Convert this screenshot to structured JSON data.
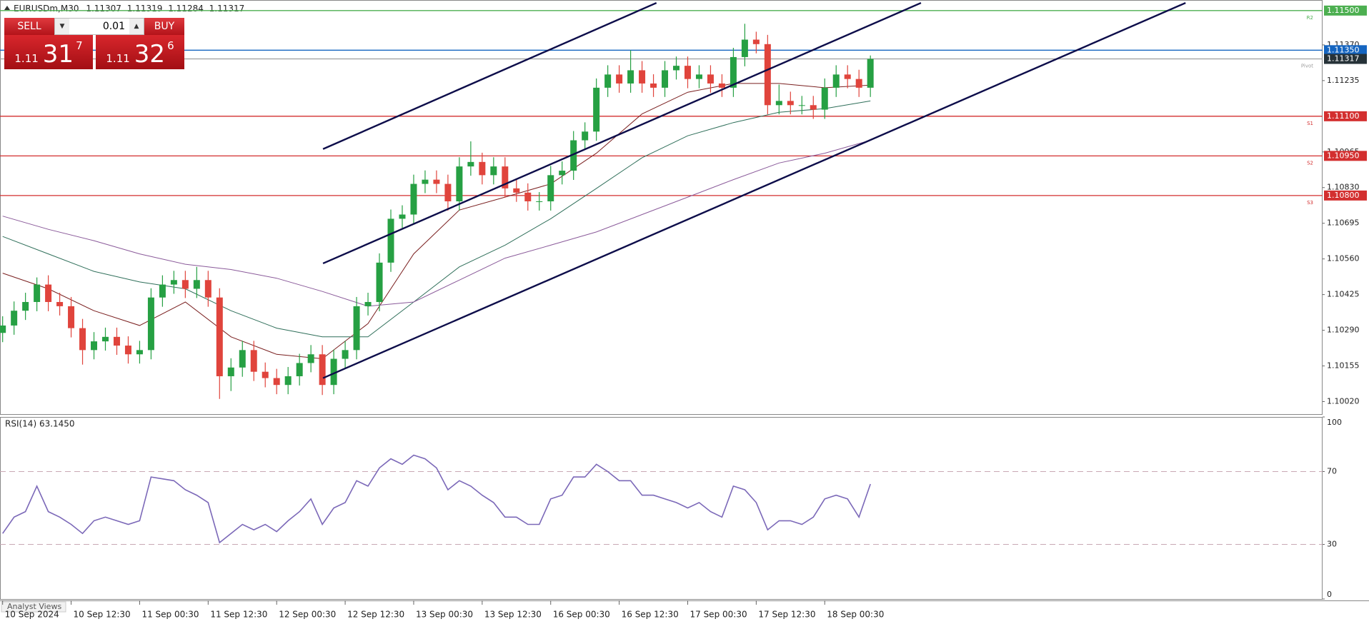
{
  "header": {
    "symbol": "EURUSDm,M30",
    "quote": [
      "1.11307",
      "1.11319",
      "1.11284",
      "1.11317"
    ]
  },
  "trade_panel": {
    "sell_label": "SELL",
    "buy_label": "BUY",
    "lot": "0.01",
    "sell_price": {
      "prefix": "1.11",
      "big": "31",
      "sup": "7"
    },
    "buy_price": {
      "prefix": "1.11",
      "big": "32",
      "sup": "6"
    }
  },
  "footer_tab": "Analyst Views",
  "chart_data": [
    {
      "type": "candlestick",
      "up_color": "#26a043",
      "down_color": "#e0443c",
      "xlim": [
        -0.23,
        115.6
      ],
      "ylim": [
        1.0997,
        1.1154
      ],
      "yticks": [
        {
          "value": 1.1137,
          "label": "1.11370"
        },
        {
          "value": 1.11235,
          "label": "1.11235"
        },
        {
          "value": 1.10965,
          "label": "1.10965"
        },
        {
          "value": 1.1083,
          "label": "1.10830"
        },
        {
          "value": 1.10695,
          "label": "1.10695"
        },
        {
          "value": 1.1056,
          "label": "1.10560"
        },
        {
          "value": 1.10425,
          "label": "1.10425"
        },
        {
          "value": 1.1029,
          "label": "1.10290"
        },
        {
          "value": 1.10155,
          "label": "1.10155"
        },
        {
          "value": 1.1002,
          "label": "1.10020"
        }
      ],
      "xticks": [
        {
          "value": 0,
          "label": "10 Sep 2024"
        },
        {
          "value": 6,
          "label": "10 Sep 12:30"
        },
        {
          "value": 12,
          "label": "11 Sep 00:30"
        },
        {
          "value": 18,
          "label": "11 Sep 12:30"
        },
        {
          "value": 24,
          "label": "12 Sep 00:30"
        },
        {
          "value": 30,
          "label": "12 Sep 12:30"
        },
        {
          "value": 36,
          "label": "13 Sep 00:30"
        },
        {
          "value": 42,
          "label": "13 Sep 12:30"
        },
        {
          "value": 48,
          "label": "16 Sep 00:30"
        },
        {
          "value": 54,
          "label": "16 Sep 12:30"
        },
        {
          "value": 60,
          "label": "17 Sep 00:30"
        },
        {
          "value": 66,
          "label": "17 Sep 12:30"
        },
        {
          "value": 72,
          "label": "18 Sep 00:30"
        }
      ],
      "candles": [
        [
          1.1028,
          1.10343,
          1.10245,
          1.10308
        ],
        [
          1.10308,
          1.10399,
          1.10273,
          1.10364
        ],
        [
          1.10364,
          1.10432,
          1.10329,
          1.10397
        ],
        [
          1.10397,
          1.1049,
          1.10362,
          1.10463
        ],
        [
          1.10463,
          1.10498,
          1.10362,
          1.10397
        ],
        [
          1.10397,
          1.10432,
          1.10346,
          1.10381
        ],
        [
          1.10381,
          1.10416,
          1.10263,
          1.10298
        ],
        [
          1.10298,
          1.10333,
          1.1016,
          1.10215
        ],
        [
          1.10215,
          1.10283,
          1.1018,
          1.10248
        ],
        [
          1.10248,
          1.103,
          1.10213,
          1.10265
        ],
        [
          1.10265,
          1.103,
          1.10197,
          1.10232
        ],
        [
          1.10232,
          1.10267,
          1.10164,
          1.10199
        ],
        [
          1.10199,
          1.1025,
          1.10164,
          1.10215
        ],
        [
          1.10215,
          1.10449,
          1.1018,
          1.10414
        ],
        [
          1.10414,
          1.10498,
          1.10379,
          1.10463
        ],
        [
          1.10463,
          1.10515,
          1.10428,
          1.1048
        ],
        [
          1.1048,
          1.10515,
          1.10412,
          1.10447
        ],
        [
          1.10447,
          1.1053,
          1.10412,
          1.1048
        ],
        [
          1.1048,
          1.10515,
          1.10379,
          1.10414
        ],
        [
          1.10414,
          1.10449,
          1.1003,
          1.10116
        ],
        [
          1.10116,
          1.10184,
          1.1006,
          1.10149
        ],
        [
          1.10149,
          1.1025,
          1.10114,
          1.10215
        ],
        [
          1.10215,
          1.1025,
          1.10098,
          1.10133
        ],
        [
          1.10133,
          1.10168,
          1.10074,
          1.10109
        ],
        [
          1.10109,
          1.10144,
          1.10048,
          1.10083
        ],
        [
          1.10083,
          1.10151,
          1.10048,
          1.10116
        ],
        [
          1.10116,
          1.10201,
          1.10081,
          1.10166
        ],
        [
          1.10166,
          1.10234,
          1.10131,
          1.10199
        ],
        [
          1.10199,
          1.10234,
          1.10045,
          1.10083
        ],
        [
          1.10083,
          1.10217,
          1.10048,
          1.10182
        ],
        [
          1.10182,
          1.1025,
          1.10147,
          1.10215
        ],
        [
          1.10215,
          1.10416,
          1.1018,
          1.10381
        ],
        [
          1.10381,
          1.10432,
          1.10346,
          1.10397
        ],
        [
          1.10397,
          1.10581,
          1.10362,
          1.10546
        ],
        [
          1.10546,
          1.10747,
          1.10511,
          1.10712
        ],
        [
          1.10712,
          1.10763,
          1.10677,
          1.10728
        ],
        [
          1.10728,
          1.10879,
          1.10693,
          1.10844
        ],
        [
          1.10844,
          1.10895,
          1.10809,
          1.1086
        ],
        [
          1.1086,
          1.10895,
          1.10809,
          1.10844
        ],
        [
          1.10844,
          1.10879,
          1.10743,
          1.10778
        ],
        [
          1.10778,
          1.10945,
          1.10743,
          1.1091
        ],
        [
          1.1091,
          1.11005,
          1.10875,
          1.10927
        ],
        [
          1.10927,
          1.10962,
          1.10842,
          1.10877
        ],
        [
          1.10877,
          1.10945,
          1.10842,
          1.1091
        ],
        [
          1.1091,
          1.10945,
          1.10792,
          1.10827
        ],
        [
          1.10827,
          1.10862,
          1.10776,
          1.10811
        ],
        [
          1.10811,
          1.10846,
          1.10743,
          1.10778
        ],
        [
          1.10778,
          1.10813,
          1.10743,
          1.10778
        ],
        [
          1.10778,
          1.10912,
          1.10743,
          1.10877
        ],
        [
          1.10877,
          1.10929,
          1.10842,
          1.10894
        ],
        [
          1.10894,
          1.11044,
          1.10859,
          1.11009
        ],
        [
          1.11009,
          1.11077,
          1.10974,
          1.11042
        ],
        [
          1.11042,
          1.11243,
          1.11007,
          1.11208
        ],
        [
          1.11208,
          1.11293,
          1.11173,
          1.11258
        ],
        [
          1.11258,
          1.11293,
          1.11189,
          1.11224
        ],
        [
          1.11224,
          1.1135,
          1.11189,
          1.11274
        ],
        [
          1.11274,
          1.11309,
          1.11189,
          1.11224
        ],
        [
          1.11224,
          1.11259,
          1.11173,
          1.11208
        ],
        [
          1.11208,
          1.11309,
          1.11173,
          1.11274
        ],
        [
          1.11274,
          1.11326,
          1.11239,
          1.11291
        ],
        [
          1.11291,
          1.11326,
          1.11206,
          1.11241
        ],
        [
          1.11241,
          1.11293,
          1.11206,
          1.11258
        ],
        [
          1.11258,
          1.11293,
          1.11189,
          1.11224
        ],
        [
          1.11224,
          1.11259,
          1.11173,
          1.11208
        ],
        [
          1.11208,
          1.11359,
          1.11173,
          1.11324
        ],
        [
          1.11324,
          1.1145,
          1.11289,
          1.1139
        ],
        [
          1.1139,
          1.1142,
          1.11338,
          1.11373
        ],
        [
          1.11373,
          1.11408,
          1.11107,
          1.11142
        ],
        [
          1.11142,
          1.1122,
          1.11107,
          1.11158
        ],
        [
          1.11158,
          1.11193,
          1.11107,
          1.11142
        ],
        [
          1.11142,
          1.11177,
          1.11107,
          1.11142
        ],
        [
          1.11142,
          1.11177,
          1.1109,
          1.11125
        ],
        [
          1.11125,
          1.11243,
          1.1109,
          1.11208
        ],
        [
          1.11208,
          1.11293,
          1.11173,
          1.11258
        ],
        [
          1.11258,
          1.11293,
          1.11206,
          1.11241
        ],
        [
          1.11241,
          1.11276,
          1.11173,
          1.11208
        ],
        [
          1.11208,
          1.1133,
          1.11173,
          1.11317
        ]
      ],
      "moving_averages": {
        "x": [
          0,
          4,
          8,
          12,
          16,
          20,
          24,
          28,
          32,
          36,
          40,
          44,
          48,
          52,
          56,
          60,
          64,
          68,
          72,
          76
        ],
        "series": [
          {
            "color": "#7a1f1f",
            "values": [
              1.10506,
              1.10447,
              1.10364,
              1.10308,
              1.10397,
              1.10265,
              1.10199,
              1.10182,
              1.10315,
              1.10579,
              1.10745,
              1.10794,
              1.10844,
              1.1096,
              1.11109,
              1.11191,
              1.11224,
              1.11224,
              1.11208,
              1.11218
            ]
          },
          {
            "color": "#2f6f5a",
            "values": [
              1.10645,
              1.10579,
              1.10513,
              1.10473,
              1.10447,
              1.10364,
              1.10298,
              1.10265,
              1.10265,
              1.10397,
              1.1053,
              1.10612,
              1.10712,
              1.10827,
              1.10943,
              1.11026,
              1.11076,
              1.11115,
              1.11129,
              1.11158
            ]
          },
          {
            "color": "#8a5a9a",
            "values": [
              1.10722,
              1.10672,
              1.10629,
              1.10579,
              1.1054,
              1.1052,
              1.10487,
              1.10437,
              1.10381,
              1.10397,
              1.1048,
              1.10563,
              1.10612,
              1.10662,
              1.10728,
              1.10794,
              1.1086,
              1.10923,
              1.1096,
              1.11009
            ]
          }
        ]
      },
      "trendline_color": "#0d0d4a",
      "trendlines": [
        {
          "x": [
            28.06,
            57.26
          ],
          "y": [
            1.10976,
            1.11529
          ]
        },
        {
          "x": [
            28.06,
            80.43
          ],
          "y": [
            1.10543,
            1.11529
          ]
        },
        {
          "x": [
            28.06,
            103.6
          ],
          "y": [
            1.10109,
            1.11529
          ]
        }
      ],
      "levels": [
        {
          "price": 1.115,
          "label": "1.11500",
          "color": "#4caf50",
          "tag": "R2"
        },
        {
          "price": 1.1135,
          "label": "1.11350",
          "color": "#1565c0"
        },
        {
          "price": 1.11317,
          "label": "1.11317",
          "color": "#9e9e9e",
          "label_bg": "#263238",
          "tag": "Pivot"
        },
        {
          "price": 1.111,
          "label": "1.11100",
          "color": "#d32f2f",
          "tag": "S1"
        },
        {
          "price": 1.1095,
          "label": "1.10950",
          "color": "#d32f2f",
          "tag": "S2"
        },
        {
          "price": 1.108,
          "label": "1.10800",
          "color": "#d32f2f",
          "tag": "S3"
        }
      ]
    },
    {
      "type": "line",
      "title": "RSI(14) 63.1450",
      "color": "#7b68b8",
      "ylim": [
        0,
        100
      ],
      "yticks": [
        100,
        70,
        30,
        0
      ],
      "dashed_levels": [
        70,
        30
      ],
      "values": [
        36,
        45,
        48,
        62,
        48,
        45,
        41,
        36,
        43,
        45,
        43,
        41,
        43,
        67,
        66,
        65,
        60,
        57,
        53,
        31,
        36,
        41,
        38,
        41,
        37,
        43,
        48,
        55,
        41,
        50,
        53,
        65,
        62,
        72,
        77,
        74,
        79,
        77,
        72,
        60,
        65,
        62,
        57,
        53,
        45,
        45,
        41,
        41,
        55,
        57,
        67,
        67,
        74,
        70,
        65,
        65,
        57,
        57,
        55,
        53,
        50,
        53,
        48,
        45,
        62,
        60,
        53,
        38,
        43,
        43,
        41,
        45,
        55,
        57,
        55,
        45,
        63.145
      ]
    }
  ]
}
